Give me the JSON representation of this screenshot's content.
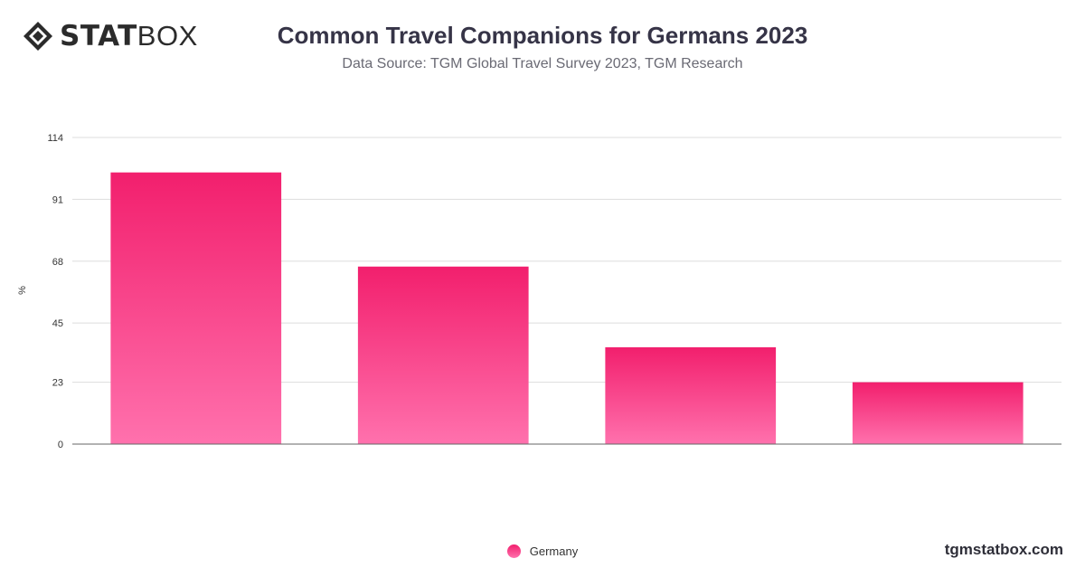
{
  "brand": {
    "logo_bold": "STAT",
    "logo_light": "BOX",
    "site": "tgmstatbox.com"
  },
  "header": {
    "title": "Common Travel Companions for Germans 2023",
    "subtitle": "Data Source: TGM Global Travel Survey 2023, TGM Research"
  },
  "legend": {
    "items": [
      {
        "label": "Germany",
        "color": "#f21f6d"
      }
    ]
  },
  "chart_data": {
    "type": "bar",
    "title": "Common Travel Companions for Germans 2023",
    "subtitle": "Data Source: TGM Global Travel Survey 2023, TGM Research",
    "xlabel": "",
    "ylabel": "%",
    "categories": [
      "",
      "",
      "",
      ""
    ],
    "series": [
      {
        "name": "Germany",
        "values": [
          101,
          66,
          36,
          23
        ]
      }
    ],
    "ylim": [
      0,
      114
    ],
    "yticks": [
      0,
      23,
      45,
      68,
      91,
      114
    ],
    "grid": true,
    "legend_position": "bottom",
    "colors": {
      "bar_top": "#f21f6d",
      "bar_bottom": "#ff71ad",
      "grid": "#dddddd",
      "axis": "#666666",
      "tick_text": "#333333"
    }
  }
}
